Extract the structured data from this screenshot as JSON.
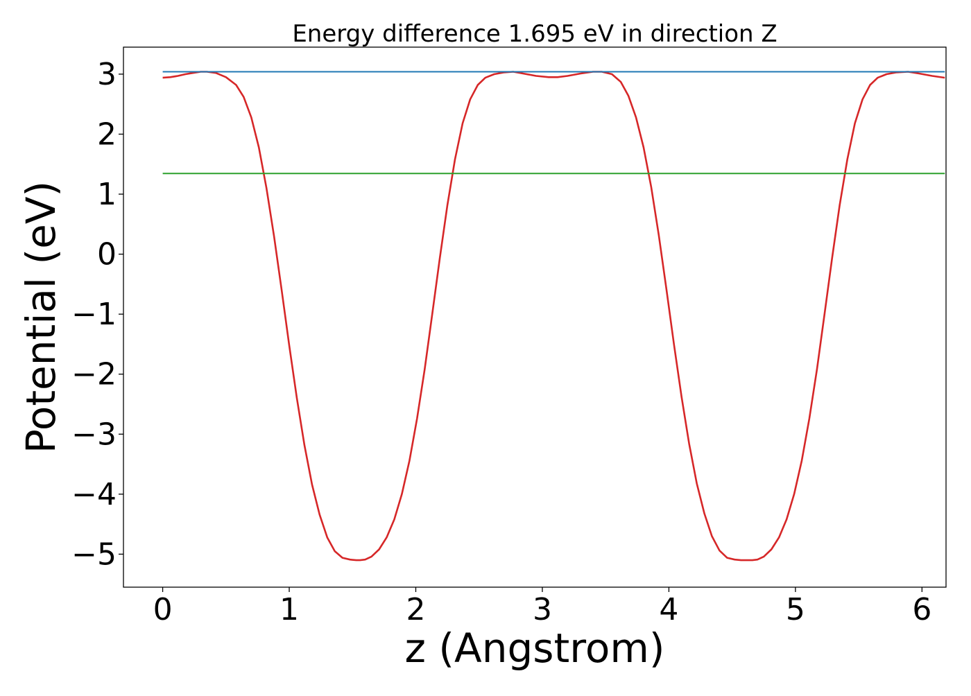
{
  "chart_data": {
    "type": "line",
    "title": "Energy difference 1.695 eV in direction Z",
    "xlabel": "z (Angstrom)",
    "ylabel": "Potential (eV)",
    "xlim": [
      -0.31,
      6.19
    ],
    "ylim": [
      -5.55,
      3.45
    ],
    "xticks": [
      0,
      1,
      2,
      3,
      4,
      5,
      6
    ],
    "xtick_labels": [
      "0",
      "1",
      "2",
      "3",
      "4",
      "5",
      "6"
    ],
    "yticks": [
      3,
      2,
      1,
      0,
      -1,
      -2,
      -3,
      -4,
      -5
    ],
    "ytick_labels": [
      "3",
      "2",
      "1",
      "0",
      "−1",
      "−2",
      "−3",
      "−4",
      "−5"
    ],
    "grid": false,
    "colors": {
      "potential": "#d62728",
      "maximum": "#1f77b4",
      "mean": "#2ca02c",
      "spine": "#000000"
    },
    "series": [
      {
        "key": "potential",
        "x": [
          0.0,
          0.06,
          0.12,
          0.18,
          0.24,
          0.3,
          0.35,
          0.42,
          0.5,
          0.58,
          0.64,
          0.7,
          0.76,
          0.82,
          0.88,
          0.94,
          1.0,
          1.06,
          1.12,
          1.18,
          1.24,
          1.3,
          1.36,
          1.42,
          1.48,
          1.53,
          1.56,
          1.6,
          1.65,
          1.71,
          1.77,
          1.83,
          1.89,
          1.95,
          2.01,
          2.07,
          2.13,
          2.19,
          2.25,
          2.31,
          2.37,
          2.43,
          2.49,
          2.55,
          2.62,
          2.7,
          2.77,
          2.85,
          2.95,
          3.05,
          3.12,
          3.2,
          3.3,
          3.4,
          3.47,
          3.55,
          3.62,
          3.68,
          3.74,
          3.8,
          3.86,
          3.92,
          3.98,
          4.04,
          4.1,
          4.16,
          4.22,
          4.28,
          4.34,
          4.4,
          4.46,
          4.52,
          4.57,
          4.62,
          4.66,
          4.7,
          4.75,
          4.81,
          4.87,
          4.93,
          4.99,
          5.05,
          5.11,
          5.17,
          5.23,
          5.29,
          5.35,
          5.41,
          5.47,
          5.53,
          5.59,
          5.65,
          5.72,
          5.8,
          5.89,
          5.98,
          6.08,
          6.18
        ],
        "y": [
          2.94,
          2.95,
          2.97,
          3.0,
          3.02,
          3.04,
          3.04,
          3.02,
          2.95,
          2.82,
          2.62,
          2.28,
          1.78,
          1.1,
          0.3,
          -0.6,
          -1.52,
          -2.4,
          -3.18,
          -3.84,
          -4.34,
          -4.72,
          -4.95,
          -5.06,
          -5.09,
          -5.1,
          -5.1,
          -5.09,
          -5.04,
          -4.92,
          -4.72,
          -4.42,
          -4.0,
          -3.44,
          -2.74,
          -1.92,
          -1.0,
          -0.06,
          0.82,
          1.58,
          2.18,
          2.58,
          2.82,
          2.94,
          3.0,
          3.03,
          3.04,
          3.01,
          2.97,
          2.95,
          2.95,
          2.97,
          3.01,
          3.04,
          3.04,
          3.0,
          2.87,
          2.64,
          2.28,
          1.78,
          1.12,
          0.32,
          -0.58,
          -1.5,
          -2.38,
          -3.16,
          -3.82,
          -4.32,
          -4.7,
          -4.94,
          -5.06,
          -5.09,
          -5.1,
          -5.1,
          -5.1,
          -5.09,
          -5.04,
          -4.92,
          -4.72,
          -4.42,
          -4.0,
          -3.44,
          -2.74,
          -1.92,
          -1.0,
          -0.06,
          0.82,
          1.58,
          2.18,
          2.58,
          2.82,
          2.94,
          3.0,
          3.03,
          3.04,
          3.01,
          2.97,
          2.94
        ]
      },
      {
        "key": "maximum",
        "x": [
          0.0,
          6.18
        ],
        "y": [
          3.04,
          3.04
        ]
      },
      {
        "key": "mean",
        "x": [
          0.0,
          6.18
        ],
        "y": [
          1.345,
          1.345
        ]
      }
    ]
  }
}
